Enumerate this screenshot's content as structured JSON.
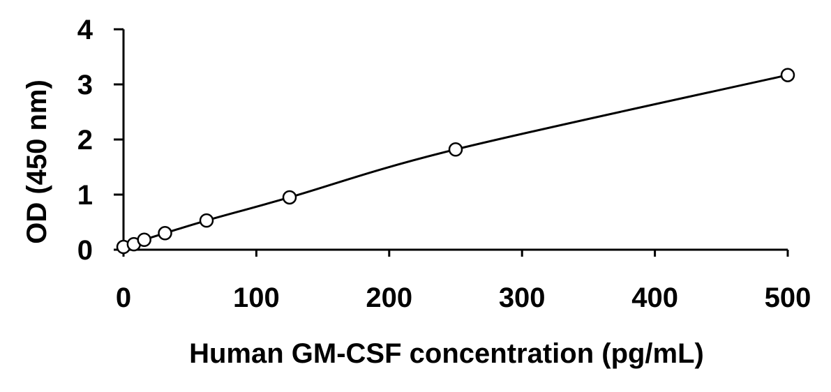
{
  "chart_data": {
    "type": "scatter",
    "title": "",
    "xlabel": "Human GM-CSF concentration (pg/mL)",
    "ylabel": "OD (450 nm)",
    "xlim": [
      0,
      500
    ],
    "ylim": [
      0,
      4
    ],
    "xticks": [
      0,
      100,
      200,
      300,
      400,
      500
    ],
    "yticks": [
      0,
      1,
      2,
      3,
      4
    ],
    "grid": false,
    "legend": "none",
    "marker": "open-circle",
    "fit_line": true,
    "series": [
      {
        "x": [
          0,
          7.8,
          15.6,
          31.25,
          62.5,
          125,
          250,
          500
        ],
        "y": [
          0.05,
          0.1,
          0.18,
          0.3,
          0.53,
          0.95,
          1.82,
          3.17
        ]
      }
    ]
  }
}
